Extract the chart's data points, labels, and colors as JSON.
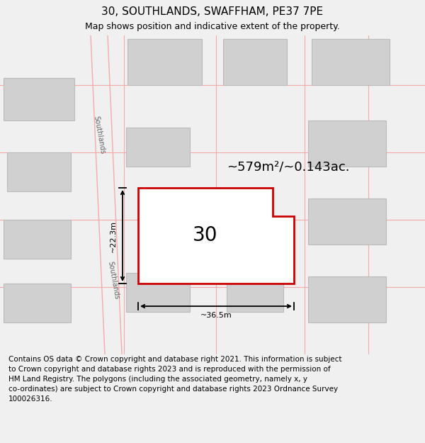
{
  "title": "30, SOUTHLANDS, SWAFFHAM, PE37 7PE",
  "subtitle": "Map shows position and indicative extent of the property.",
  "footer": "Contains OS data © Crown copyright and database right 2021. This information is subject\nto Crown copyright and database rights 2023 and is reproduced with the permission of\nHM Land Registry. The polygons (including the associated geometry, namely x, y\nco-ordinates) are subject to Crown copyright and database rights 2023 Ordnance Survey\n100026316.",
  "area_label": "~579m²/~0.143ac.",
  "width_label": "~36.5m",
  "height_label": "~22.3m",
  "number_label": "30",
  "bg_color": "#f0f0f0",
  "map_bg": "#ffffff",
  "grid_color": "#f5aaaa",
  "building_fill": "#d0d0d0",
  "building_edge": "#bbbbbb",
  "plot_edge_color": "#cc0000",
  "dim_color": "#000000",
  "street_color": "#666666",
  "title_fontsize": 11,
  "subtitle_fontsize": 9,
  "footer_fontsize": 7.5,
  "area_fontsize": 13,
  "number_fontsize": 20,
  "dim_fontsize": 8,
  "street_fontsize": 7
}
